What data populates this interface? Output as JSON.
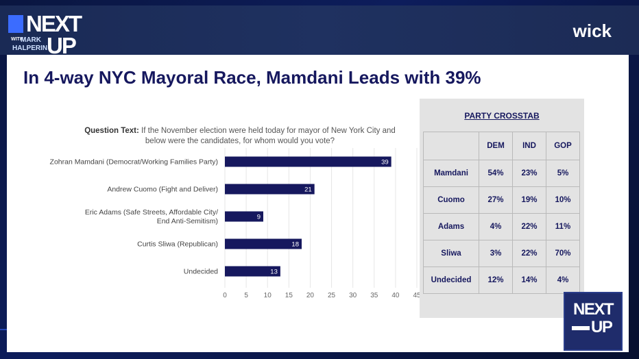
{
  "header": {
    "logo": {
      "line1": "NEXT",
      "with": "WITH",
      "host_first": "MARK",
      "host_last": "HALPERIN",
      "line2": "UP"
    },
    "brand": "wick"
  },
  "slide": {
    "title": "In 4-way NYC Mayoral Race, Mamdani Leads with 39%",
    "question_label": "Question Text:",
    "question_text": "If the November election were held today for mayor of New York City and below were the candidates, for whom would you vote?"
  },
  "chart_data": {
    "type": "bar",
    "orientation": "horizontal",
    "categories": [
      [
        "Zohran Mamdani (Democrat/Working Families Party)"
      ],
      [
        "Andrew Cuomo (Fight and Deliver)"
      ],
      [
        "Eric Adams (Safe Streets, Affordable City/",
        "End Anti-Semitism)"
      ],
      [
        "Curtis Sliwa (Republican)"
      ],
      [
        "Undecided"
      ]
    ],
    "values": [
      39,
      21,
      9,
      18,
      13
    ],
    "xlim": [
      0,
      45
    ],
    "xticks": [
      0,
      5,
      10,
      15,
      20,
      25,
      30,
      35,
      40,
      45
    ],
    "bar_color": "#16185e",
    "grid": true
  },
  "crosstab": {
    "title": "PARTY CROSSTAB",
    "columns": [
      "DEM",
      "IND",
      "GOP"
    ],
    "rows": [
      {
        "label": "Mamdani",
        "values": [
          "54%",
          "23%",
          "5%"
        ]
      },
      {
        "label": "Cuomo",
        "values": [
          "27%",
          "19%",
          "10%"
        ]
      },
      {
        "label": "Adams",
        "values": [
          "4%",
          "22%",
          "11%"
        ]
      },
      {
        "label": "Sliwa",
        "values": [
          "3%",
          "22%",
          "70%"
        ]
      },
      {
        "label": "Undecided",
        "values": [
          "12%",
          "14%",
          "4%"
        ]
      }
    ]
  },
  "badge": {
    "line1": "NEXT",
    "line2": "UP"
  }
}
